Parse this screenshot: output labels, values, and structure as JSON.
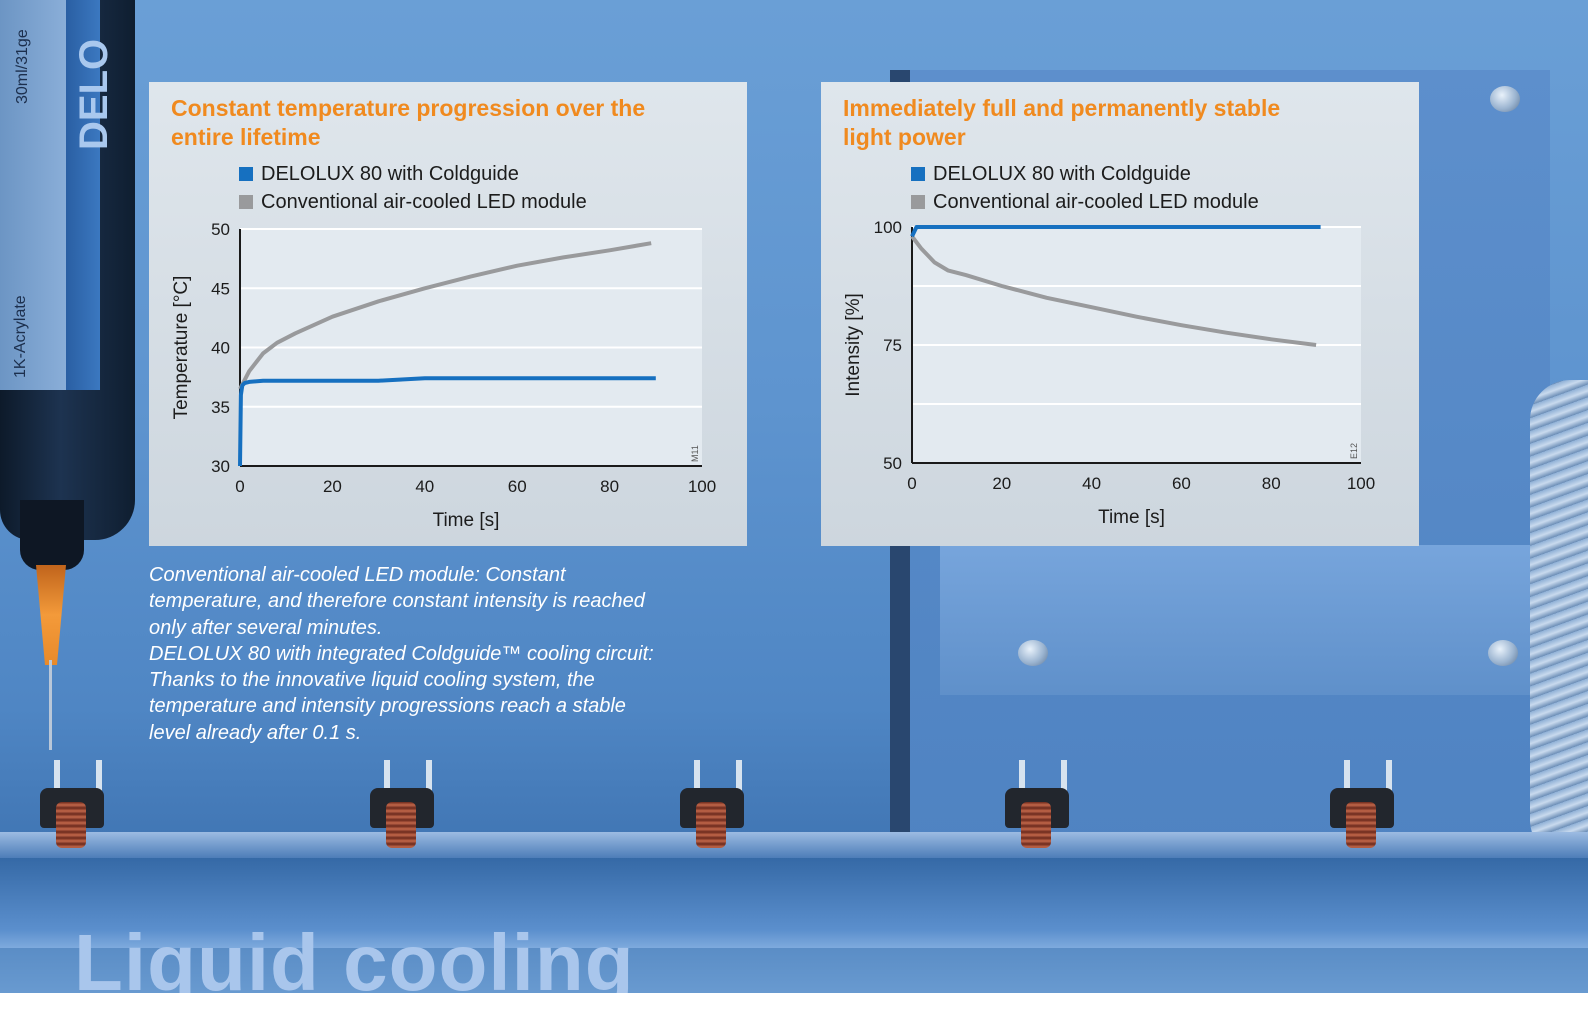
{
  "colors": {
    "delolux": "#1670c0",
    "conventional": "#999a9c",
    "title": "#f08a1f",
    "panel": "#d7dfe6"
  },
  "background": {
    "syringe_texts": [
      "30ml/31ge",
      "1K-Acrylate"
    ],
    "syringe_brand": "DELO"
  },
  "chart_data": [
    {
      "type": "line",
      "title": "Constant temperature progression over the entire lifetime",
      "xlabel": "Time [s]",
      "ylabel": "Temperature [°C]",
      "xlim": [
        0,
        100
      ],
      "ylim": [
        30,
        50
      ],
      "xticks": [
        0,
        20,
        40,
        60,
        80,
        100
      ],
      "yticks": [
        30,
        35,
        40,
        45,
        50
      ],
      "grid": "horizontal",
      "legend_position": "top",
      "code": "M11",
      "series": [
        {
          "name": "DELOLUX 80 with Coldguide",
          "color": "#1670c0",
          "x": [
            0,
            0.2,
            0.5,
            1,
            2,
            5,
            10,
            20,
            30,
            40,
            50,
            60,
            70,
            80,
            90
          ],
          "y": [
            30,
            36,
            36.8,
            37.0,
            37.1,
            37.2,
            37.2,
            37.2,
            37.2,
            37.4,
            37.4,
            37.4,
            37.4,
            37.4,
            37.4
          ]
        },
        {
          "name": "Conventional air-cooled LED module",
          "color": "#999a9c",
          "x": [
            0,
            2,
            5,
            8,
            12,
            20,
            30,
            40,
            50,
            60,
            70,
            80,
            89
          ],
          "y": [
            36.5,
            38.0,
            39.5,
            40.4,
            41.2,
            42.6,
            43.9,
            45.0,
            46.0,
            46.9,
            47.6,
            48.2,
            48.8
          ]
        }
      ]
    },
    {
      "type": "line",
      "title": "Immediately full and permanently stable light power",
      "xlabel": "Time [s]",
      "ylabel": "Intensity [%]",
      "xlim": [
        0,
        100
      ],
      "ylim": [
        50,
        100
      ],
      "xticks": [
        0,
        20,
        40,
        60,
        80,
        100
      ],
      "yticks": [
        50,
        75,
        100
      ],
      "grid": "horizontal",
      "legend_position": "top",
      "code": "E12",
      "series": [
        {
          "name": "DELOLUX 80 with Coldguide",
          "color": "#1670c0",
          "x": [
            0,
            1,
            2,
            5,
            10,
            20,
            40,
            60,
            80,
            91
          ],
          "y": [
            98,
            100,
            100,
            100,
            100,
            100,
            100,
            100,
            100,
            100
          ]
        },
        {
          "name": "Conventional air-cooled LED module",
          "color": "#999a9c",
          "x": [
            0,
            2,
            5,
            8,
            12,
            20,
            30,
            40,
            50,
            60,
            70,
            80,
            90
          ],
          "y": [
            98,
            95.5,
            92.5,
            90.8,
            89.8,
            87.5,
            85.0,
            83.0,
            81.0,
            79.2,
            77.6,
            76.2,
            75.0
          ]
        }
      ]
    }
  ],
  "caption": {
    "lines": [
      "Conventional air-cooled LED module: Constant",
      "temperature, and therefore constant intensity is reached",
      "only after several minutes.",
      "DELOLUX 80 with integrated Coldguide™ cooling circuit:",
      "Thanks to the innovative liquid cooling system, the",
      "temperature and intensity progressions reach a stable",
      "level already after 0.1 s."
    ]
  },
  "heading": "Liquid cooling"
}
